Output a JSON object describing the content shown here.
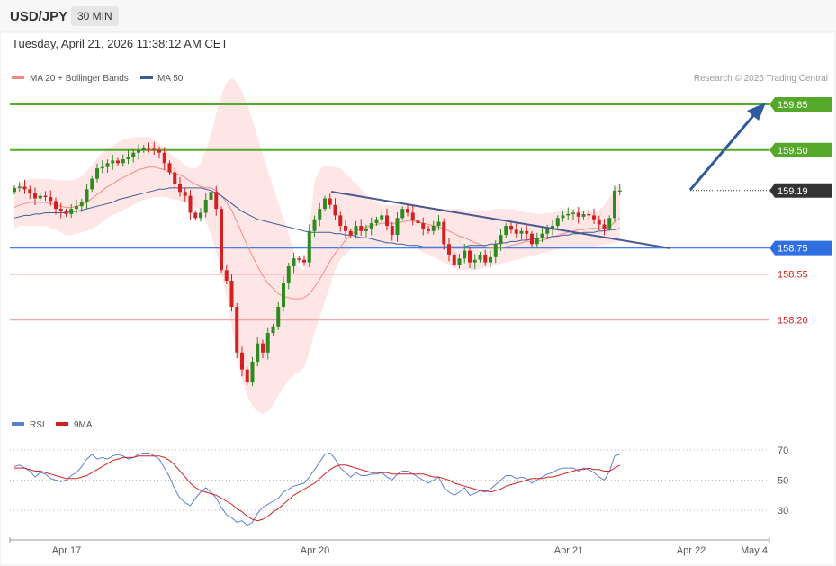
{
  "header": {
    "symbol": "USD/JPY",
    "timeframe": "30 MIN"
  },
  "datetime": "Tuesday, April 21, 2026 11:38:12 AM CET",
  "legend": {
    "bollinger": {
      "label": "MA 20 + Bollinger Bands",
      "color": "#f28b82"
    },
    "ma50": {
      "label": "MA 50",
      "color": "#3b5b9a"
    },
    "copyright": "Research © 2026 Trading Central"
  },
  "rsi_legend": {
    "rsi": {
      "label": "RSI",
      "color": "#5b7fd9"
    },
    "ma9": {
      "label": "9MA",
      "color": "#d32020"
    }
  },
  "colors": {
    "up": "#2e8b22",
    "down": "#d32020",
    "resistance": "#55a82a",
    "support": "#2f6fe0",
    "minor_support": "#f4a6a6",
    "band": "#ffe3e3",
    "last_price": "#333333",
    "trend_arrow": "#2e5aa0"
  },
  "chart_data": [
    {
      "type": "candlestick",
      "title": "",
      "ylim": [
        157.45,
        160.15
      ],
      "x_tick_labels": [
        "Apr 17",
        "Apr 20",
        "Apr 21",
        "Apr 22",
        "May 4"
      ],
      "levels": [
        {
          "value": 159.85,
          "label": "159.85",
          "kind": "resistance"
        },
        {
          "value": 159.5,
          "label": "159.50",
          "kind": "resistance"
        },
        {
          "value": 159.19,
          "label": "159.19",
          "kind": "last_price"
        },
        {
          "value": 158.75,
          "label": "158.75",
          "kind": "support"
        },
        {
          "value": 158.55,
          "label": "158.55",
          "kind": "minor_support"
        },
        {
          "value": 158.2,
          "label": "158.20",
          "kind": "minor_support"
        }
      ],
      "candles_close": [
        159.21,
        159.22,
        159.2,
        159.17,
        159.13,
        159.15,
        159.14,
        159.11,
        159.05,
        159.03,
        159.01,
        159.05,
        159.07,
        159.1,
        159.2,
        159.28,
        159.36,
        159.37,
        159.4,
        159.42,
        159.4,
        159.43,
        159.45,
        159.48,
        159.5,
        159.52,
        159.51,
        159.5,
        159.48,
        159.4,
        159.33,
        159.24,
        159.18,
        159.15,
        159.02,
        158.98,
        159.02,
        159.12,
        159.18,
        159.05,
        158.58,
        158.5,
        158.3,
        157.95,
        157.82,
        157.72,
        157.88,
        158.02,
        157.95,
        158.1,
        158.15,
        158.3,
        158.48,
        158.61,
        158.67,
        158.66,
        158.64,
        158.88,
        158.97,
        159.05,
        159.13,
        159.08,
        159.0,
        158.92,
        158.88,
        158.85,
        158.92,
        158.88,
        158.9,
        158.94,
        158.97,
        159.0,
        158.92,
        158.85,
        158.98,
        159.05,
        159.02,
        158.96,
        158.94,
        158.9,
        158.88,
        158.92,
        158.95,
        158.78,
        158.7,
        158.62,
        158.67,
        158.73,
        158.64,
        158.66,
        158.7,
        158.64,
        158.68,
        158.78,
        158.85,
        158.92,
        158.89,
        158.86,
        158.88,
        158.86,
        158.78,
        158.83,
        158.86,
        158.9,
        158.92,
        158.98,
        159.0,
        159.01,
        159.02,
        158.99,
        159.01,
        159.0,
        158.97,
        158.93,
        158.9,
        158.98,
        159.19,
        159.19
      ],
      "ma20": [
        159.06,
        159.08,
        159.09,
        159.1,
        159.1,
        159.1,
        159.1,
        159.09,
        159.08,
        159.07,
        159.06,
        159.06,
        159.07,
        159.08,
        159.1,
        159.13,
        159.16,
        159.19,
        159.22,
        159.24,
        159.27,
        159.29,
        159.31,
        159.33,
        159.35,
        159.36,
        159.37,
        159.37,
        159.36,
        159.35,
        159.33,
        159.32,
        159.31,
        159.29,
        159.26,
        159.24,
        159.22,
        159.21,
        159.21,
        159.19,
        159.15,
        159.1,
        159.04,
        158.95,
        158.86,
        158.77,
        158.69,
        158.61,
        158.54,
        158.48,
        158.44,
        158.4,
        158.38,
        158.37,
        158.36,
        158.36,
        158.37,
        158.4,
        158.45,
        158.51,
        158.58,
        158.65,
        158.71,
        158.76,
        158.81,
        158.85,
        158.88,
        158.9,
        158.91,
        158.92,
        158.93,
        158.94,
        158.94,
        158.94,
        158.94,
        158.95,
        158.96,
        158.96,
        158.95,
        158.94,
        158.93,
        158.92,
        158.91,
        158.9,
        158.88,
        158.86,
        158.84,
        158.83,
        158.81,
        158.79,
        158.78,
        158.76,
        158.75,
        158.75,
        158.75,
        158.76,
        158.77,
        158.78,
        158.79,
        158.8,
        158.8,
        158.8,
        158.81,
        158.82,
        158.83,
        158.85,
        158.86,
        158.87,
        158.88,
        158.89,
        158.89,
        158.9,
        158.9,
        158.9,
        158.9,
        158.91,
        158.95,
        158.98
      ],
      "bb_upper": [
        159.2,
        159.24,
        159.26,
        159.28,
        159.28,
        159.28,
        159.28,
        159.28,
        159.27,
        159.27,
        159.27,
        159.27,
        159.28,
        159.3,
        159.34,
        159.38,
        159.44,
        159.48,
        159.51,
        159.53,
        159.56,
        159.58,
        159.59,
        159.6,
        159.6,
        159.6,
        159.6,
        159.58,
        159.55,
        159.52,
        159.48,
        159.44,
        159.42,
        159.38,
        159.36,
        159.36,
        159.4,
        159.5,
        159.62,
        159.78,
        159.92,
        160.02,
        160.05,
        160.02,
        159.95,
        159.85,
        159.73,
        159.6,
        159.47,
        159.34,
        159.22,
        159.1,
        158.98,
        158.86,
        158.72,
        158.6,
        158.58,
        158.9,
        159.26,
        159.35,
        159.38,
        159.38,
        159.37,
        159.36,
        159.32,
        159.28,
        159.24,
        159.2,
        159.16,
        159.12,
        159.1,
        159.08,
        159.08,
        159.08,
        159.08,
        159.08,
        159.08,
        159.08,
        159.07,
        159.07,
        159.06,
        159.06,
        159.05,
        159.05,
        159.05,
        159.05,
        159.05,
        159.04,
        159.03,
        159.03,
        159.03,
        159.03,
        159.04,
        159.05,
        159.05,
        159.05,
        159.05,
        159.04,
        159.03,
        159.02,
        159.02,
        159.01,
        159.01,
        159.02,
        159.02,
        159.03,
        159.04,
        159.04,
        159.04,
        159.04,
        159.03,
        159.03,
        159.03,
        159.04,
        159.08,
        159.14,
        159.2,
        159.25
      ],
      "bb_lower": [
        158.9,
        158.92,
        158.92,
        158.92,
        158.92,
        158.92,
        158.92,
        158.9,
        158.89,
        158.87,
        158.85,
        158.85,
        158.86,
        158.87,
        158.88,
        158.9,
        158.92,
        158.95,
        158.98,
        159.0,
        159.02,
        159.04,
        159.06,
        159.08,
        159.1,
        159.12,
        159.13,
        159.14,
        159.14,
        159.14,
        159.13,
        159.12,
        159.11,
        159.1,
        159.08,
        159.06,
        159.02,
        158.95,
        158.86,
        158.72,
        158.56,
        158.38,
        158.15,
        157.92,
        157.74,
        157.62,
        157.54,
        157.5,
        157.48,
        157.5,
        157.55,
        157.62,
        157.68,
        157.74,
        157.78,
        157.8,
        157.84,
        157.95,
        158.1,
        158.22,
        158.34,
        158.46,
        158.58,
        158.66,
        158.7,
        158.74,
        158.76,
        158.76,
        158.76,
        158.76,
        158.76,
        158.77,
        158.77,
        158.77,
        158.77,
        158.77,
        158.77,
        158.76,
        158.74,
        158.72,
        158.7,
        158.68,
        158.66,
        158.64,
        158.62,
        158.6,
        158.58,
        158.58,
        158.58,
        158.58,
        158.59,
        158.6,
        158.61,
        158.62,
        158.63,
        158.64,
        158.65,
        158.66,
        158.67,
        158.68,
        158.69,
        158.7,
        158.71,
        158.72,
        158.73,
        158.74,
        158.75,
        158.76,
        158.76,
        158.76,
        158.76,
        158.76,
        158.76,
        158.77,
        158.78,
        158.78,
        158.79,
        158.8
      ],
      "ma50": [
        158.98,
        158.99,
        159.0,
        159.0,
        159.01,
        159.01,
        159.02,
        159.02,
        159.02,
        159.02,
        159.02,
        159.03,
        159.03,
        159.04,
        159.05,
        159.06,
        159.07,
        159.08,
        159.09,
        159.1,
        159.12,
        159.13,
        159.14,
        159.15,
        159.16,
        159.17,
        159.18,
        159.19,
        159.2,
        159.2,
        159.21,
        159.21,
        159.21,
        159.21,
        159.21,
        159.21,
        159.21,
        159.2,
        159.19,
        159.17,
        159.15,
        159.12,
        159.09,
        159.06,
        159.03,
        159.01,
        158.99,
        158.97,
        158.96,
        158.95,
        158.94,
        158.93,
        158.92,
        158.91,
        158.9,
        158.89,
        158.88,
        158.87,
        158.87,
        158.87,
        158.87,
        158.87,
        158.86,
        158.86,
        158.85,
        158.85,
        158.84,
        158.83,
        158.83,
        158.82,
        158.81,
        158.8,
        158.79,
        158.79,
        158.78,
        158.78,
        158.77,
        158.77,
        158.77,
        158.76,
        158.76,
        158.76,
        158.76,
        158.76,
        158.76,
        158.76,
        158.76,
        158.76,
        158.77,
        158.77,
        158.77,
        158.77,
        158.78,
        158.78,
        158.79,
        158.79,
        158.8,
        158.8,
        158.81,
        158.81,
        158.82,
        158.82,
        158.83,
        158.83,
        158.84,
        158.84,
        158.85,
        158.85,
        158.86,
        158.86,
        158.87,
        158.87,
        158.87,
        158.88,
        158.88,
        158.89,
        158.89,
        158.9
      ]
    },
    {
      "type": "line",
      "title": "",
      "ylim": [
        18,
        80
      ],
      "y_tick_labels": [
        "70",
        "50",
        "30"
      ],
      "series": [
        {
          "name": "RSI",
          "values": [
            59,
            60,
            58,
            56,
            52,
            55,
            54,
            51,
            50,
            49,
            50,
            53,
            55,
            59,
            64,
            67,
            64,
            65,
            64,
            66,
            67,
            66,
            64,
            65,
            67,
            68,
            68,
            66,
            64,
            58,
            52,
            44,
            38,
            35,
            33,
            38,
            42,
            45,
            42,
            38,
            32,
            27,
            25,
            22,
            23,
            20,
            22,
            28,
            32,
            34,
            36,
            38,
            42,
            44,
            46,
            47,
            48,
            52,
            57,
            62,
            67,
            68,
            64,
            58,
            55,
            52,
            55,
            53,
            53,
            54,
            54,
            55,
            52,
            50,
            54,
            56,
            56,
            54,
            52,
            50,
            48,
            50,
            52,
            45,
            42,
            40,
            42,
            45,
            40,
            41,
            43,
            42,
            44,
            47,
            50,
            53,
            53,
            51,
            52,
            51,
            48,
            50,
            52,
            54,
            55,
            57,
            58,
            58,
            58,
            56,
            58,
            57,
            55,
            52,
            50,
            56,
            66,
            67
          ]
        },
        {
          "name": "9MA",
          "values": [
            58,
            58,
            58,
            57,
            56,
            56,
            55,
            54,
            53,
            52,
            51,
            51,
            51,
            52,
            53,
            55,
            57,
            59,
            61,
            63,
            64,
            65,
            65,
            65,
            66,
            66,
            66,
            66,
            66,
            65,
            63,
            60,
            56,
            52,
            48,
            45,
            43,
            42,
            41,
            40,
            38,
            36,
            34,
            31,
            29,
            26,
            24,
            23,
            24,
            26,
            29,
            31,
            34,
            37,
            40,
            42,
            44,
            46,
            48,
            51,
            54,
            57,
            59,
            60,
            60,
            59,
            58,
            57,
            56,
            55,
            55,
            55,
            55,
            54,
            54,
            54,
            54,
            54,
            54,
            54,
            53,
            52,
            52,
            51,
            50,
            48,
            47,
            46,
            45,
            44,
            43,
            43,
            42,
            43,
            44,
            46,
            47,
            48,
            49,
            50,
            51,
            51,
            51,
            52,
            52,
            53,
            54,
            55,
            56,
            57,
            57,
            58,
            57,
            57,
            56,
            56,
            58,
            60
          ]
        }
      ]
    }
  ]
}
